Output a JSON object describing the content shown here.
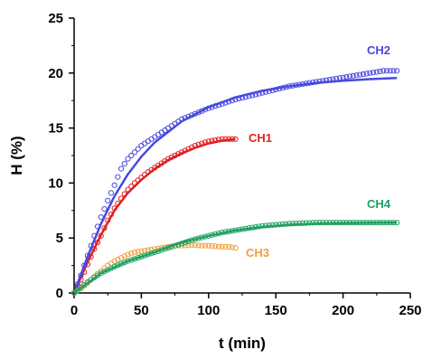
{
  "chart_data": {
    "type": "scatter",
    "xlabel": "t (min)",
    "ylabel": "H (%)",
    "xlim": [
      0,
      250
    ],
    "ylim": [
      0,
      25
    ],
    "x_ticks": [
      "0",
      "50",
      "100",
      "150",
      "200",
      "250"
    ],
    "y_ticks": [
      "0",
      "5",
      "10",
      "15",
      "20",
      "25"
    ],
    "grid": false,
    "series": [
      {
        "name": "CH1",
        "color": "#e02020",
        "points": [
          [
            0,
            0
          ],
          [
            5,
            1.2
          ],
          [
            10,
            2.6
          ],
          [
            15,
            4.0
          ],
          [
            20,
            5.2
          ],
          [
            25,
            6.6
          ],
          [
            30,
            7.7
          ],
          [
            35,
            8.6
          ],
          [
            40,
            9.4
          ],
          [
            45,
            10.0
          ],
          [
            50,
            10.5
          ],
          [
            55,
            11.0
          ],
          [
            60,
            11.4
          ],
          [
            65,
            11.8
          ],
          [
            70,
            12.2
          ],
          [
            75,
            12.5
          ],
          [
            80,
            12.8
          ],
          [
            85,
            13.1
          ],
          [
            90,
            13.4
          ],
          [
            95,
            13.6
          ],
          [
            100,
            13.8
          ],
          [
            105,
            13.9
          ],
          [
            110,
            14.0
          ],
          [
            115,
            14.0
          ],
          [
            120,
            14.0
          ]
        ],
        "fit": [
          [
            0,
            0
          ],
          [
            10,
            2.8
          ],
          [
            20,
            5.3
          ],
          [
            30,
            7.5
          ],
          [
            40,
            9.1
          ],
          [
            50,
            10.3
          ],
          [
            60,
            11.3
          ],
          [
            70,
            12.1
          ],
          [
            80,
            12.7
          ],
          [
            90,
            13.2
          ],
          [
            100,
            13.6
          ],
          [
            110,
            13.85
          ],
          [
            120,
            14.0
          ]
        ]
      },
      {
        "name": "CH2",
        "color": "#4848e0",
        "points": [
          [
            0,
            0
          ],
          [
            5,
            1.6
          ],
          [
            10,
            3.4
          ],
          [
            15,
            5.2
          ],
          [
            20,
            6.9
          ],
          [
            25,
            8.4
          ],
          [
            30,
            9.8
          ],
          [
            35,
            11.3
          ],
          [
            40,
            12.2
          ],
          [
            45,
            12.8
          ],
          [
            50,
            13.4
          ],
          [
            60,
            14.2
          ],
          [
            70,
            15.0
          ],
          [
            80,
            15.8
          ],
          [
            90,
            16.3
          ],
          [
            100,
            16.8
          ],
          [
            110,
            17.2
          ],
          [
            120,
            17.6
          ],
          [
            130,
            17.9
          ],
          [
            140,
            18.2
          ],
          [
            150,
            18.5
          ],
          [
            160,
            18.8
          ],
          [
            170,
            19.0
          ],
          [
            180,
            19.2
          ],
          [
            190,
            19.4
          ],
          [
            200,
            19.6
          ],
          [
            210,
            19.8
          ],
          [
            220,
            20.0
          ],
          [
            230,
            20.2
          ],
          [
            240,
            20.2
          ]
        ],
        "fit": [
          [
            0,
            0
          ],
          [
            10,
            3.3
          ],
          [
            20,
            6.3
          ],
          [
            30,
            8.8
          ],
          [
            40,
            10.8
          ],
          [
            50,
            12.4
          ],
          [
            60,
            13.7
          ],
          [
            80,
            15.6
          ],
          [
            100,
            16.9
          ],
          [
            120,
            17.8
          ],
          [
            140,
            18.4
          ],
          [
            160,
            18.8
          ],
          [
            180,
            19.1
          ],
          [
            200,
            19.3
          ],
          [
            220,
            19.45
          ],
          [
            240,
            19.55
          ]
        ]
      },
      {
        "name": "CH3",
        "color": "#f0a040",
        "points": [
          [
            0,
            0
          ],
          [
            5,
            0.4
          ],
          [
            10,
            0.9
          ],
          [
            15,
            1.5
          ],
          [
            20,
            2.0
          ],
          [
            25,
            2.5
          ],
          [
            30,
            2.9
          ],
          [
            35,
            3.2
          ],
          [
            40,
            3.5
          ],
          [
            45,
            3.7
          ],
          [
            50,
            3.8
          ],
          [
            55,
            3.9
          ],
          [
            60,
            4.0
          ],
          [
            65,
            4.1
          ],
          [
            70,
            4.2
          ],
          [
            75,
            4.3
          ],
          [
            80,
            4.3
          ],
          [
            85,
            4.35
          ],
          [
            90,
            4.35
          ],
          [
            95,
            4.3
          ],
          [
            100,
            4.3
          ],
          [
            105,
            4.25
          ],
          [
            110,
            4.2
          ],
          [
            115,
            4.2
          ],
          [
            120,
            4.1
          ]
        ]
      },
      {
        "name": "CH4",
        "color": "#20a060",
        "points": [
          [
            0,
            0
          ],
          [
            10,
            1.0
          ],
          [
            20,
            1.8
          ],
          [
            30,
            2.4
          ],
          [
            40,
            2.9
          ],
          [
            50,
            3.3
          ],
          [
            60,
            3.7
          ],
          [
            70,
            4.1
          ],
          [
            80,
            4.5
          ],
          [
            90,
            4.9
          ],
          [
            100,
            5.2
          ],
          [
            110,
            5.5
          ],
          [
            120,
            5.7
          ],
          [
            130,
            5.9
          ],
          [
            140,
            6.1
          ],
          [
            150,
            6.2
          ],
          [
            160,
            6.3
          ],
          [
            170,
            6.35
          ],
          [
            180,
            6.4
          ],
          [
            190,
            6.4
          ],
          [
            200,
            6.4
          ],
          [
            210,
            6.4
          ],
          [
            220,
            6.4
          ],
          [
            230,
            6.4
          ],
          [
            240,
            6.4
          ]
        ],
        "fit": [
          [
            0,
            0
          ],
          [
            20,
            1.8
          ],
          [
            40,
            2.9
          ],
          [
            60,
            3.7
          ],
          [
            80,
            4.6
          ],
          [
            100,
            5.2
          ],
          [
            120,
            5.7
          ],
          [
            140,
            6.0
          ],
          [
            160,
            6.2
          ],
          [
            180,
            6.3
          ],
          [
            200,
            6.35
          ],
          [
            220,
            6.38
          ],
          [
            240,
            6.4
          ]
        ]
      }
    ]
  }
}
